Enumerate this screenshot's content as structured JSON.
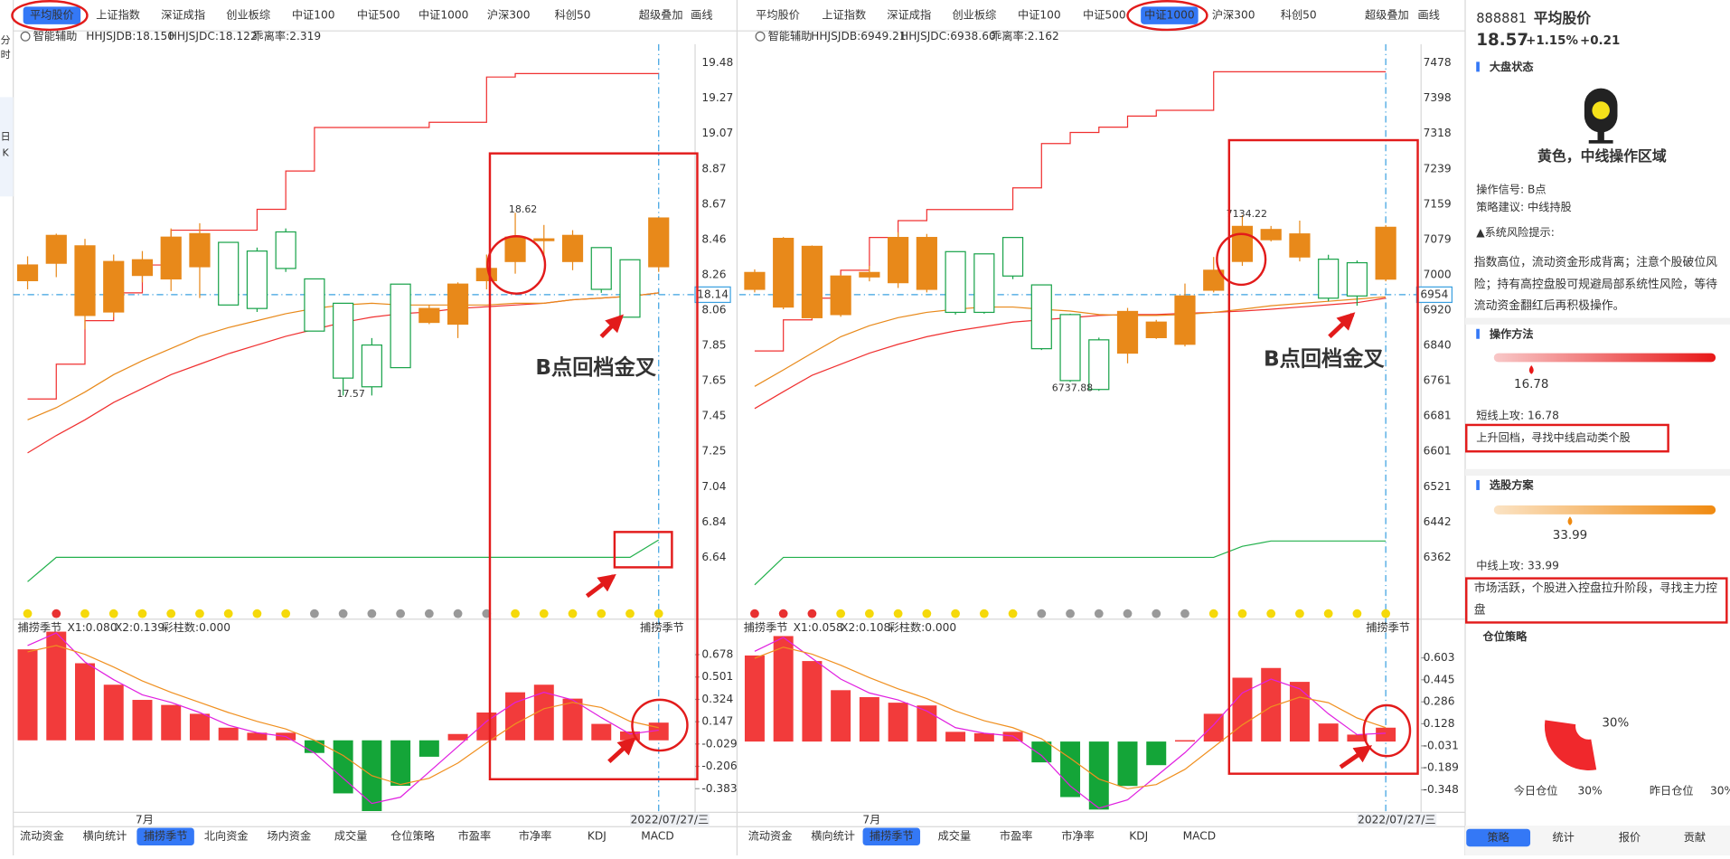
{
  "left_rail": [
    "分",
    "时",
    "日",
    "K"
  ],
  "colors": {
    "up": "#e8891a",
    "down": "#19a34a",
    "step": "#f03030",
    "ma1": "#f03030",
    "ma2": "#e8891a",
    "green": "#22b14c",
    "macd_up": "#f23b3b",
    "macd_down": "#14a538",
    "line1": "#e020e0",
    "line2": "#f09020",
    "accent": "#3478f6"
  },
  "charts": [
    {
      "tabs": [
        {
          "label": "平均股价",
          "active": true
        },
        {
          "label": "上证指数",
          "active": false
        },
        {
          "label": "深证成指",
          "active": false
        },
        {
          "label": "创业板综",
          "active": false
        },
        {
          "label": "中证100",
          "active": false
        },
        {
          "label": "中证500",
          "active": false
        },
        {
          "label": "中证1000",
          "active": false
        },
        {
          "label": "沪深300",
          "active": false
        },
        {
          "label": "科创50",
          "active": false
        },
        {
          "label": "超级叠加",
          "active": false
        },
        {
          "label": "画线",
          "active": false
        }
      ],
      "indicator": {
        "name": "智能辅助",
        "b": "HHJSJDB:18.150",
        "c": "HHJSJDC:18.122",
        "dev": "乖离率:2.319"
      },
      "price_axis": [
        "19.48",
        "19.27",
        "19.07",
        "8.87",
        "8.67",
        "8.46",
        "8.26",
        "8.06",
        "7.85",
        "7.65",
        "7.45",
        "7.25",
        "7.04",
        "6.84",
        "6.64"
      ],
      "ylim": [
        6.386,
        9.589
      ],
      "candles": [
        [
          8.23,
          8.32,
          8.37,
          8.18
        ],
        [
          8.33,
          8.49,
          8.5,
          8.25
        ],
        [
          8.03,
          8.43,
          8.47,
          7.95
        ],
        [
          8.05,
          8.34,
          8.38,
          8.02
        ],
        [
          8.26,
          8.35,
          8.4,
          8.22
        ],
        [
          8.24,
          8.48,
          8.53,
          8.17
        ],
        [
          8.31,
          8.5,
          8.56,
          8.13
        ],
        [
          8.45,
          8.09,
          8.45,
          8.09
        ],
        [
          8.4,
          8.07,
          8.42,
          8.05
        ],
        [
          8.51,
          8.3,
          8.53,
          8.28
        ],
        [
          8.24,
          7.94,
          8.24,
          7.94
        ],
        [
          8.1,
          7.67,
          8.1,
          7.57
        ],
        [
          7.86,
          7.62,
          7.9,
          7.57
        ],
        [
          8.21,
          7.73,
          8.21,
          7.73
        ],
        [
          7.99,
          8.07,
          8.09,
          7.98
        ],
        [
          7.98,
          8.21,
          8.22,
          7.9
        ],
        [
          8.23,
          8.3,
          8.38,
          8.18
        ],
        [
          8.34,
          8.48,
          8.62,
          8.27
        ],
        [
          8.46,
          8.47,
          8.55,
          8.35
        ],
        [
          8.34,
          8.49,
          8.52,
          8.29
        ],
        [
          8.42,
          8.18,
          8.42,
          8.16
        ],
        [
          8.35,
          8.02,
          8.35,
          8.02
        ],
        [
          8.31,
          8.59,
          8.59,
          8.28
        ]
      ],
      "step": [
        7.55,
        7.75,
        8.0,
        8.16,
        8.32,
        8.52,
        8.52,
        8.52,
        8.64,
        8.86,
        9.11,
        9.11,
        9.11,
        9.11,
        9.14,
        9.14,
        9.4,
        9.42,
        9.42,
        9.42,
        9.42,
        9.42,
        9.42
      ],
      "ma1": [
        7.24,
        7.34,
        7.43,
        7.53,
        7.61,
        7.69,
        7.75,
        7.81,
        7.86,
        7.91,
        7.95,
        7.99,
        8.02,
        8.04,
        8.05,
        8.07,
        8.08,
        8.09,
        8.1,
        8.12,
        8.13,
        8.14,
        8.16
      ],
      "ma2": [
        7.43,
        7.5,
        7.59,
        7.69,
        7.77,
        7.84,
        7.91,
        7.96,
        8.0,
        8.04,
        8.07,
        8.09,
        8.1,
        8.09,
        8.09,
        8.09,
        8.09,
        8.1,
        8.1,
        8.12,
        8.13,
        8.14,
        8.16
      ],
      "green": [
        6.5,
        6.64,
        6.64,
        6.64,
        6.64,
        6.64,
        6.64,
        6.64,
        6.64,
        6.64,
        6.64,
        6.64,
        6.64,
        6.64,
        6.64,
        6.64,
        6.64,
        6.64,
        6.64,
        6.64,
        6.64,
        6.64,
        6.74
      ],
      "high_label": "18.62",
      "low_label": "17.57",
      "last_label": "18.14",
      "signals": [
        "#f5d90a",
        "#e83030",
        "#f5d90a",
        "#f5d90a",
        "#f5d90a",
        "#f5d90a",
        "#f5d90a",
        "#f5d90a",
        "#f5d90a",
        "#f5d90a",
        "#999999",
        "#999999",
        "#999999",
        "#999999",
        "#999999",
        "#999999",
        "#999999",
        "#f5d90a",
        "#f5d90a",
        "#f5d90a",
        "#f5d90a",
        "#f5d90a",
        "#f5d90a"
      ],
      "macd": {
        "name": "捕捞季节",
        "x1": "X1:0.080",
        "x2": "X2:0.139",
        "bars_count": "彩柱数:0.000",
        "yticks": [
          0.678,
          0.501,
          0.324,
          0.147,
          -0.029,
          -0.206,
          -0.383
        ],
        "ylim": [
          -0.57,
          0.88
        ],
        "bars": [
          0.72,
          0.86,
          0.61,
          0.44,
          0.32,
          0.28,
          0.21,
          0.1,
          0.06,
          0.06,
          -0.1,
          -0.42,
          -0.56,
          -0.36,
          -0.13,
          0.05,
          0.22,
          0.38,
          0.44,
          0.33,
          0.13,
          0.07,
          0.14
        ],
        "line1": [
          0.75,
          0.85,
          0.62,
          0.48,
          0.36,
          0.3,
          0.22,
          0.12,
          0.06,
          0.03,
          -0.1,
          -0.3,
          -0.5,
          -0.45,
          -0.25,
          -0.05,
          0.15,
          0.3,
          0.38,
          0.32,
          0.18,
          0.05,
          0.08
        ],
        "line2": [
          0.7,
          0.75,
          0.68,
          0.58,
          0.47,
          0.38,
          0.3,
          0.22,
          0.15,
          0.09,
          0.0,
          -0.12,
          -0.28,
          -0.35,
          -0.3,
          -0.18,
          -0.02,
          0.13,
          0.25,
          0.3,
          0.26,
          0.15,
          0.1
        ]
      },
      "annotation": "B点回档金叉",
      "month": "7月",
      "date": "2022/07/27/三",
      "bottom_tabs": [
        {
          "label": "流动资金",
          "active": false
        },
        {
          "label": "横向统计",
          "active": false
        },
        {
          "label": "捕捞季节",
          "active": true
        },
        {
          "label": "北向资金",
          "active": false
        },
        {
          "label": "场内资金",
          "active": false
        },
        {
          "label": "成交量",
          "active": false
        },
        {
          "label": "仓位策略",
          "active": false
        },
        {
          "label": "市盈率",
          "active": false
        },
        {
          "label": "市净率",
          "active": false
        },
        {
          "label": "KDJ",
          "active": false
        },
        {
          "label": "MACD",
          "active": false
        }
      ]
    },
    {
      "tabs": [
        {
          "label": "平均股价",
          "active": false
        },
        {
          "label": "上证指数",
          "active": false
        },
        {
          "label": "深证成指",
          "active": false
        },
        {
          "label": "创业板综",
          "active": false
        },
        {
          "label": "中证100",
          "active": false
        },
        {
          "label": "中证500",
          "active": false
        },
        {
          "label": "中证1000",
          "active": true
        },
        {
          "label": "沪深300",
          "active": false
        },
        {
          "label": "科创50",
          "active": false
        },
        {
          "label": "超级叠加",
          "active": false
        },
        {
          "label": "画线",
          "active": false
        }
      ],
      "indicator": {
        "name": "智能辅助",
        "b": "HHJSJDB:6949.21",
        "c": "HHJSJDC:6938.60",
        "dev": "乖离率:2.162"
      },
      "price_axis": [
        "7478",
        "7398",
        "7318",
        "7239",
        "7159",
        "7079",
        "7000",
        "6920",
        "6840",
        "6761",
        "6681",
        "6601",
        "6521",
        "6442",
        "6362"
      ],
      "ylim": [
        6262.4,
        7520.3
      ],
      "candles": [
        [
          6967,
          7005,
          7012,
          6960
        ],
        [
          6927,
          7082,
          7085,
          6922
        ],
        [
          6903,
          7064,
          7066,
          6900
        ],
        [
          6910,
          6997,
          7000,
          6905
        ],
        [
          6995,
          7005,
          7020,
          6985
        ],
        [
          6982,
          7084,
          7096,
          6970
        ],
        [
          6967,
          7084,
          7092,
          6960
        ],
        [
          7052,
          6915,
          7052,
          6910
        ],
        [
          7047,
          6915,
          7047,
          6912
        ],
        [
          7084,
          6997,
          7084,
          6990
        ],
        [
          6977,
          6833,
          6977,
          6830
        ],
        [
          6910,
          6761,
          6912,
          6758
        ],
        [
          6853,
          6741,
          6858,
          6737.88
        ],
        [
          6823,
          6917,
          6925,
          6800
        ],
        [
          6858,
          6893,
          6898,
          6855
        ],
        [
          6843,
          6952,
          6980,
          6838
        ],
        [
          6965,
          7010,
          7040,
          6960
        ],
        [
          7030,
          7109,
          7134.22,
          7020
        ],
        [
          7079,
          7102,
          7110,
          7075
        ],
        [
          7040,
          7092,
          7122,
          7030
        ],
        [
          7035,
          6947,
          7045,
          6940
        ],
        [
          7027,
          6952,
          7032,
          6930
        ],
        [
          6990,
          7107,
          7112,
          6985
        ]
      ],
      "step": [
        6828,
        6898,
        6947,
        7010,
        7084,
        7122,
        7147,
        7147,
        7147,
        7196,
        7296,
        7321,
        7333,
        7358,
        7371,
        7371,
        7458,
        7458,
        7458,
        7458,
        7458,
        7458,
        7458
      ],
      "ma1": [
        6698,
        6736,
        6773,
        6798,
        6823,
        6843,
        6860,
        6873,
        6883,
        6893,
        6898,
        6903,
        6908,
        6910,
        6910,
        6913,
        6915,
        6918,
        6922,
        6927,
        6932,
        6937,
        6947
      ],
      "ma2": [
        6748,
        6785,
        6823,
        6860,
        6885,
        6903,
        6915,
        6922,
        6927,
        6927,
        6922,
        6918,
        6910,
        6908,
        6908,
        6910,
        6915,
        6922,
        6930,
        6935,
        6940,
        6945,
        6950
      ],
      "green": [
        6300,
        6362,
        6362,
        6362,
        6362,
        6362,
        6362,
        6362,
        6362,
        6362,
        6362,
        6362,
        6362,
        6362,
        6362,
        6362,
        6362,
        6387,
        6399,
        6399,
        6399,
        6399,
        6399
      ],
      "high_label": "7134.22",
      "low_label": "6737.88",
      "last_label": "6954",
      "signals": [
        "#e83030",
        "#e83030",
        "#e83030",
        "#f5d90a",
        "#f5d90a",
        "#f5d90a",
        "#f5d90a",
        "#f5d90a",
        "#f5d90a",
        "#f5d90a",
        "#999999",
        "#999999",
        "#999999",
        "#999999",
        "#999999",
        "#999999",
        "#f5d90a",
        "#f5d90a",
        "#f5d90a",
        "#f5d90a",
        "#f5d90a",
        "#f5d90a",
        "#f5d90a"
      ],
      "macd": {
        "name": "捕捞季节",
        "x1": "X1:0.058",
        "x2": "X2:0.108",
        "bars_count": "彩柱数:0.000",
        "yticks": [
          0.603,
          0.445,
          0.286,
          0.128,
          -0.031,
          -0.189,
          -0.348
        ],
        "ylim": [
          -0.51,
          0.81
        ],
        "bars": [
          0.62,
          0.76,
          0.58,
          0.37,
          0.32,
          0.28,
          0.26,
          0.07,
          0.06,
          0.07,
          -0.15,
          -0.4,
          -0.49,
          -0.32,
          -0.17,
          0.01,
          0.2,
          0.46,
          0.53,
          0.43,
          0.13,
          0.05,
          0.1
        ],
        "line1": [
          0.65,
          0.75,
          0.6,
          0.45,
          0.35,
          0.3,
          0.22,
          0.1,
          0.06,
          0.04,
          -0.1,
          -0.32,
          -0.48,
          -0.42,
          -0.25,
          -0.08,
          0.12,
          0.35,
          0.45,
          0.38,
          0.2,
          0.05,
          0.06
        ],
        "line2": [
          0.6,
          0.68,
          0.63,
          0.55,
          0.46,
          0.38,
          0.31,
          0.22,
          0.15,
          0.1,
          0.02,
          -0.12,
          -0.27,
          -0.34,
          -0.31,
          -0.2,
          -0.04,
          0.12,
          0.25,
          0.32,
          0.28,
          0.17,
          0.1
        ]
      },
      "annotation": "B点回档金叉",
      "month": "7月",
      "date": "2022/07/27/三",
      "bottom_tabs": [
        {
          "label": "流动资金",
          "active": false
        },
        {
          "label": "横向统计",
          "active": false
        },
        {
          "label": "捕捞季节",
          "active": true
        },
        {
          "label": "成交量",
          "active": false
        },
        {
          "label": "市盈率",
          "active": false
        },
        {
          "label": "市净率",
          "active": false
        },
        {
          "label": "KDJ",
          "active": false
        },
        {
          "label": "MACD",
          "active": false
        }
      ]
    }
  ],
  "panel": {
    "code": "888881",
    "name": "平均股价",
    "price": "18.57",
    "pct": "+1.15%",
    "change": "+0.21",
    "state_title": "大盘状态",
    "state": "黄色，中线操作区域",
    "signal": "操作信号: B点",
    "advice": "策略建议: 中线持股",
    "risk_title": "▲系统风险提示:",
    "risk": "指数高位，流动资金形成背离；注意个股破位风险；持有高控盘股可规避局部系统性风险，等待流动资金翻红后再积极操作。",
    "method_title": "操作方法",
    "short_value": "16.78",
    "short_label": "短线上攻: 16.78",
    "short_text": "上升回档，寻找中线启动类个股",
    "pick_title": "选股方案",
    "mid_value": "33.99",
    "mid_label": "中线上攻: 33.99",
    "mid_text": "市场活跃，个股进入控盘拉升阶段，寻找主力控盘",
    "position_title": "仓位策略",
    "position_value": 30,
    "position_label": "30%",
    "today_label": "今日仓位",
    "yesterday_label": "昨日仓位",
    "tabs": [
      {
        "label": "策略",
        "active": true
      },
      {
        "label": "统计",
        "active": false
      },
      {
        "label": "报价",
        "active": false
      },
      {
        "label": "贡献",
        "active": false
      }
    ]
  }
}
